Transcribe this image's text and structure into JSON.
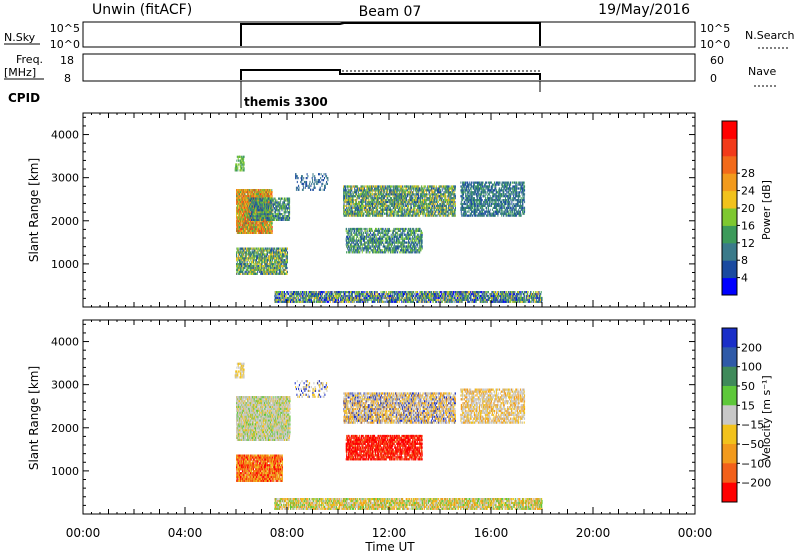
{
  "header": {
    "station": "Unwin (fitACF)",
    "beam": "Beam 07",
    "date": "19/May/2016"
  },
  "status_panels": {
    "nsky_label": "N.Sky",
    "nsky_ticks": [
      "10^5",
      "10^0"
    ],
    "nsearch_label": "N.Search",
    "freq_label": "Freq.",
    "freq_unit": "[MHz]",
    "freq_ticks": [
      "18",
      "8"
    ],
    "nave_label": "Nave",
    "nave_ticks": [
      "60",
      "0"
    ],
    "cpid_label": "CPID",
    "cpid_name": "themis 3300"
  },
  "chart_data": [
    {
      "type": "heatmap",
      "name": "power",
      "ylabel": "Slant Range [km]",
      "yticks": [
        1000,
        2000,
        3000,
        4000
      ],
      "ylim": [
        0,
        4500
      ],
      "x_hours": [
        0,
        24
      ],
      "colorbar": {
        "label": "Power [dB]",
        "ticks": [
          "4",
          "8",
          "12",
          "16",
          "20",
          "24",
          "28"
        ],
        "colors": [
          "#0000ff",
          "#1a4aa0",
          "#3a7a8a",
          "#3c9a5a",
          "#7ec830",
          "#f2c21c",
          "#f29a1c",
          "#f26a1a",
          "#f23a1a",
          "#ff0000"
        ]
      },
      "regions": [
        {
          "t0": 5.95,
          "t1": 6.3,
          "r0": 3150,
          "r1": 3500,
          "density": 0.35,
          "palette": [
            3,
            4
          ]
        },
        {
          "t0": 6.0,
          "t1": 7.4,
          "r0": 1700,
          "r1": 2700,
          "density": 0.85,
          "palette": [
            5,
            6,
            7,
            8,
            3,
            4
          ]
        },
        {
          "t0": 6.5,
          "t1": 8.1,
          "r0": 2000,
          "r1": 2500,
          "density": 0.5,
          "palette": [
            1,
            2,
            3,
            4
          ]
        },
        {
          "t0": 6.0,
          "t1": 8.0,
          "r0": 750,
          "r1": 1350,
          "density": 0.6,
          "palette": [
            4,
            5,
            3,
            1,
            2
          ]
        },
        {
          "t0": 8.3,
          "t1": 9.6,
          "r0": 2700,
          "r1": 3100,
          "density": 0.15,
          "palette": [
            1,
            2
          ]
        },
        {
          "t0": 10.2,
          "t1": 14.6,
          "r0": 2100,
          "r1": 2800,
          "density": 0.55,
          "palette": [
            1,
            2,
            3,
            4,
            5
          ]
        },
        {
          "t0": 10.3,
          "t1": 13.3,
          "r0": 1250,
          "r1": 1800,
          "density": 0.45,
          "palette": [
            1,
            2,
            3,
            4
          ]
        },
        {
          "t0": 14.8,
          "t1": 17.3,
          "r0": 2100,
          "r1": 2900,
          "density": 0.45,
          "palette": [
            1,
            2,
            3
          ]
        },
        {
          "t0": 7.5,
          "t1": 18.0,
          "r0": 100,
          "r1": 350,
          "density": 0.55,
          "palette": [
            0,
            1,
            2,
            3,
            4,
            5
          ]
        }
      ]
    },
    {
      "type": "heatmap",
      "name": "velocity",
      "ylabel": "Slant Range [km]",
      "yticks": [
        1000,
        2000,
        3000,
        4000
      ],
      "ylim": [
        0,
        4500
      ],
      "x_hours": [
        0,
        24
      ],
      "xticks": [
        "00:00",
        "04:00",
        "08:00",
        "12:00",
        "16:00",
        "20:00",
        "00:00"
      ],
      "xlabel": "Time UT",
      "colorbar": {
        "label": "Velocity [m s⁻¹]",
        "ticks": [
          "200",
          "100",
          "50",
          "15",
          "−15",
          "−50",
          "−100",
          "−200"
        ],
        "colors": [
          "#1a2fc8",
          "#2f5aa8",
          "#3f8a5a",
          "#5ec83a",
          "#c8c8c8",
          "#f2c21c",
          "#f29a1c",
          "#f2601a",
          "#ff0000"
        ]
      },
      "regions": [
        {
          "t0": 5.95,
          "t1": 6.3,
          "r0": 3150,
          "r1": 3500,
          "density": 0.35,
          "palette": [
            4,
            5
          ]
        },
        {
          "t0": 6.0,
          "t1": 8.1,
          "r0": 1700,
          "r1": 2700,
          "density": 0.8,
          "palette": [
            4,
            4,
            4,
            5,
            3
          ]
        },
        {
          "t0": 6.0,
          "t1": 7.8,
          "r0": 750,
          "r1": 1350,
          "density": 0.75,
          "palette": [
            8,
            7,
            6,
            5
          ]
        },
        {
          "t0": 8.3,
          "t1": 9.6,
          "r0": 2700,
          "r1": 3100,
          "density": 0.15,
          "palette": [
            4,
            5,
            0
          ]
        },
        {
          "t0": 10.2,
          "t1": 14.6,
          "r0": 2100,
          "r1": 2800,
          "density": 0.55,
          "palette": [
            4,
            4,
            5,
            0,
            6
          ]
        },
        {
          "t0": 10.3,
          "t1": 13.3,
          "r0": 1250,
          "r1": 1800,
          "density": 0.6,
          "palette": [
            8,
            8,
            7
          ]
        },
        {
          "t0": 14.8,
          "t1": 17.3,
          "r0": 2100,
          "r1": 2900,
          "density": 0.45,
          "palette": [
            4,
            4,
            5,
            6
          ]
        },
        {
          "t0": 7.5,
          "t1": 18.0,
          "r0": 100,
          "r1": 350,
          "density": 0.6,
          "palette": [
            3,
            4,
            5,
            6
          ]
        }
      ]
    }
  ]
}
